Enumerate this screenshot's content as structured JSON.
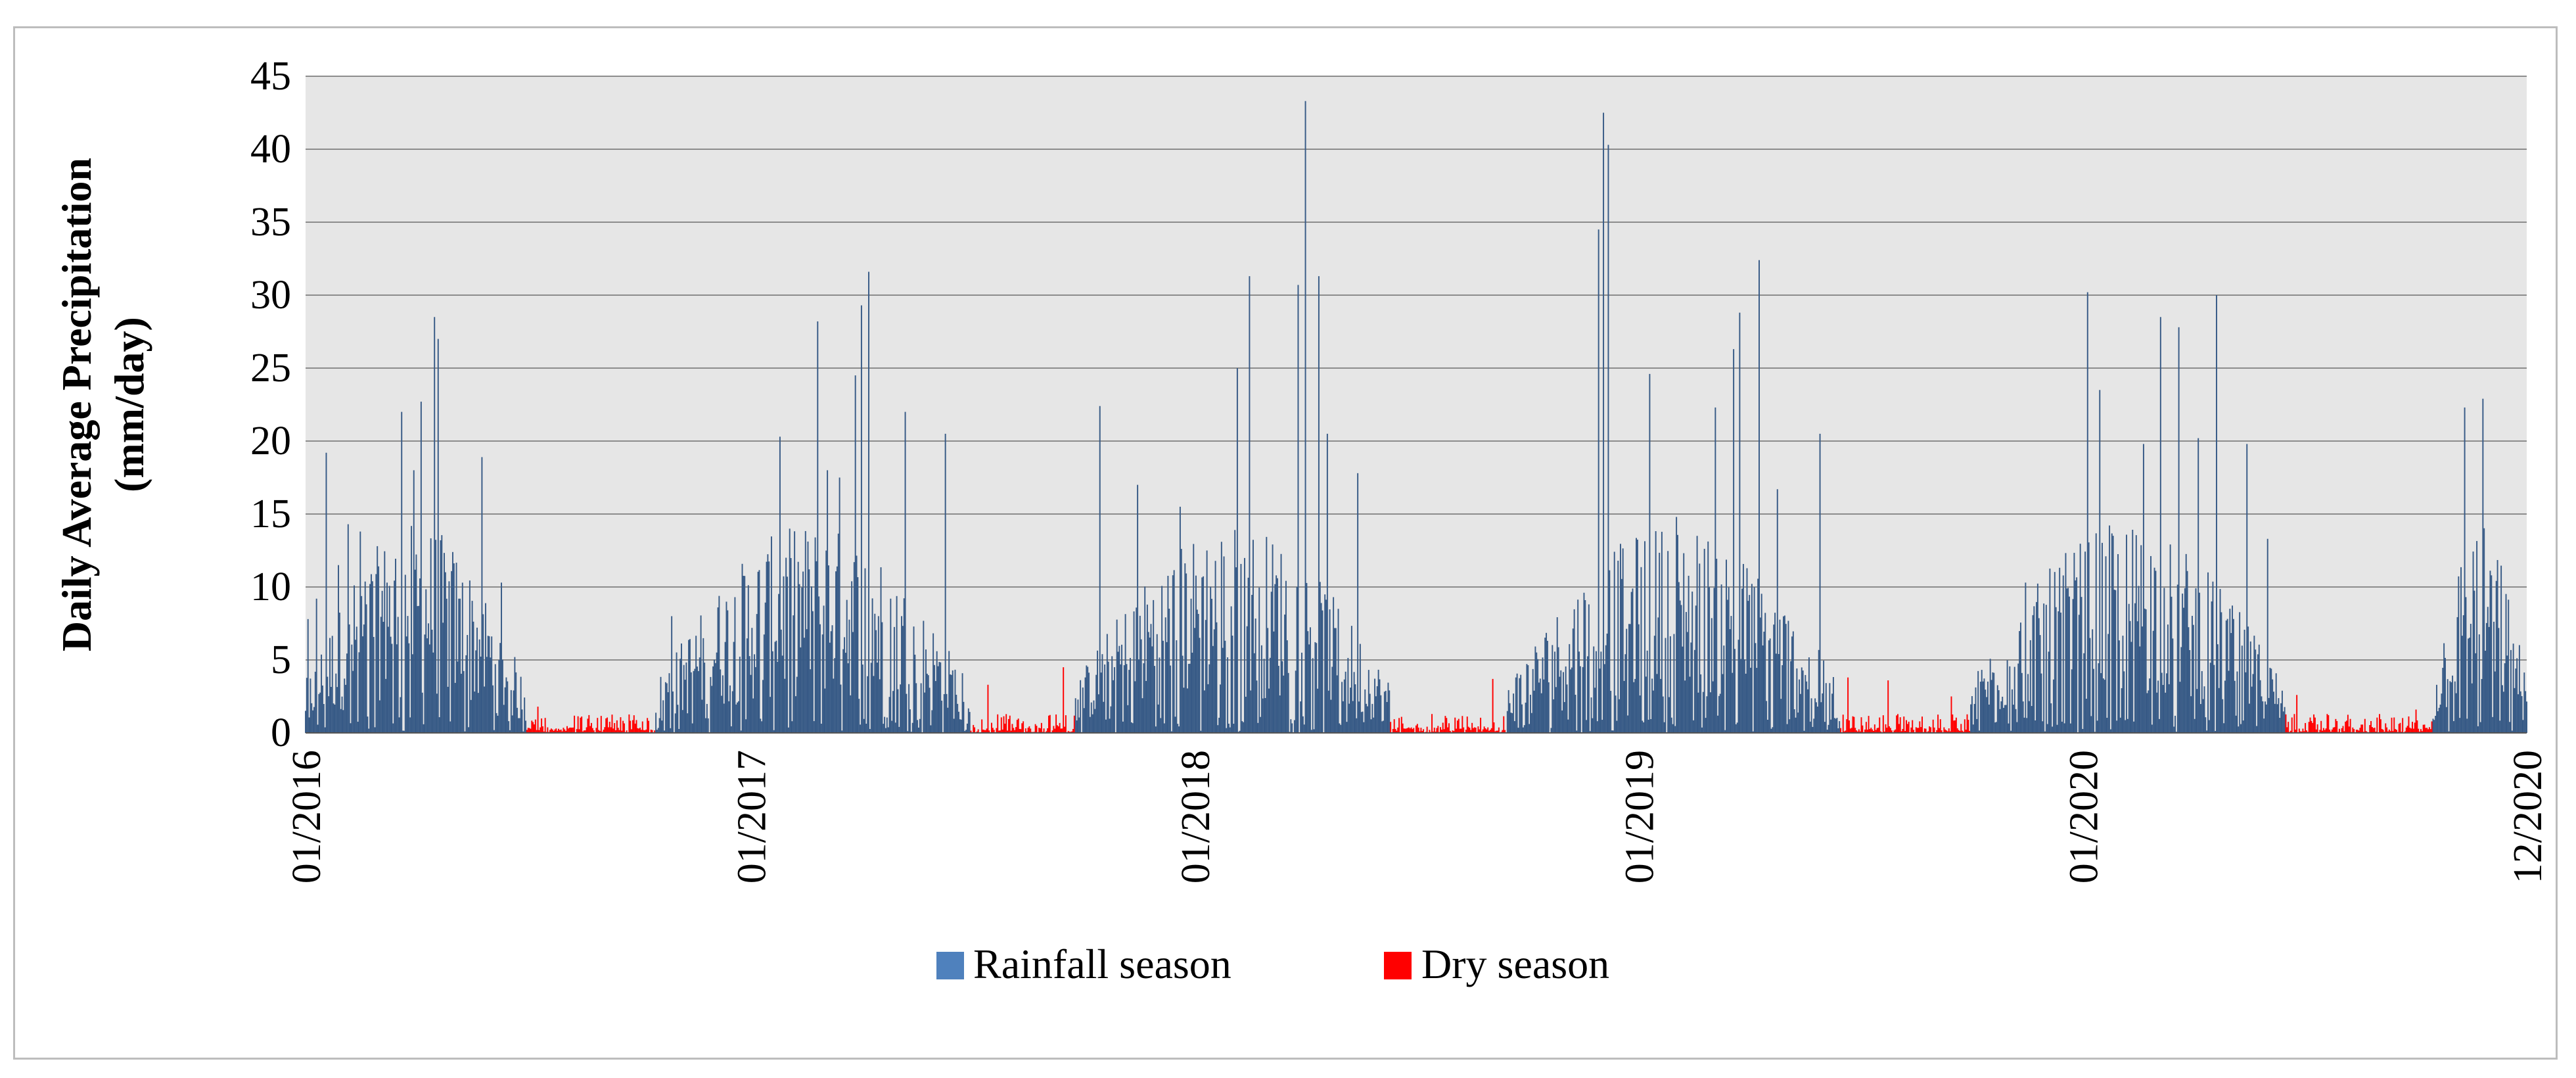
{
  "chart_data": {
    "type": "bar",
    "title": "",
    "ylabel_line1": "Daily Average Precipitation",
    "ylabel_line2": "(mm/day)",
    "xlabel": "",
    "ylim": [
      0,
      45
    ],
    "yticks": [
      0,
      5,
      10,
      15,
      20,
      25,
      30,
      35,
      40,
      45
    ],
    "xtick_labels": [
      "01/2016",
      "01/2017",
      "01/2018",
      "01/2019",
      "01/2020",
      "12/2020"
    ],
    "x_start": "01/2016",
    "x_end": "12/2020",
    "days": 1827,
    "grid": true,
    "legend_position": "bottom-center",
    "colors": {
      "rainfall": "#375a86",
      "dry": "#ff0000",
      "plot_bg": "#e6e6e6",
      "grid": "#8c8c8c",
      "legend_rain_swatch": "#4f81bd"
    },
    "series": [
      {
        "name": "Rainfall season",
        "color": "#375a86",
        "periods": [
          [
            "2016-01-01",
            "2016-06-30"
          ],
          [
            "2016-10-15",
            "2017-06-30"
          ],
          [
            "2017-09-25",
            "2018-06-10"
          ],
          [
            "2018-09-15",
            "2019-06-15"
          ],
          [
            "2019-10-01",
            "2020-06-15"
          ],
          [
            "2020-10-15",
            "2020-12-31"
          ]
        ],
        "peaks": [
          {
            "date": "2016-01-03",
            "value": 7.8
          },
          {
            "date": "2016-01-10",
            "value": 9.2
          },
          {
            "date": "2016-01-18",
            "value": 19.2
          },
          {
            "date": "2016-01-28",
            "value": 11.5
          },
          {
            "date": "2016-02-05",
            "value": 14.3
          },
          {
            "date": "2016-02-15",
            "value": 13.8
          },
          {
            "date": "2016-03-08",
            "value": 10.3
          },
          {
            "date": "2016-03-20",
            "value": 22
          },
          {
            "date": "2016-03-30",
            "value": 18
          },
          {
            "date": "2016-04-05",
            "value": 22.7
          },
          {
            "date": "2016-04-16",
            "value": 28.5
          },
          {
            "date": "2016-04-19",
            "value": 27
          },
          {
            "date": "2016-05-06",
            "value": 9.2
          },
          {
            "date": "2016-05-25",
            "value": 18.9
          },
          {
            "date": "2016-06-10",
            "value": 10.3
          },
          {
            "date": "2016-10-28",
            "value": 8
          },
          {
            "date": "2016-12-05",
            "value": 8.6
          },
          {
            "date": "2017-01-25",
            "value": 20.3
          },
          {
            "date": "2017-02-25",
            "value": 28.2
          },
          {
            "date": "2017-03-05",
            "value": 18
          },
          {
            "date": "2017-03-15",
            "value": 17.5
          },
          {
            "date": "2017-04-08",
            "value": 31.6
          },
          {
            "date": "2017-04-02",
            "value": 29.3
          },
          {
            "date": "2017-03-28",
            "value": 24.5
          },
          {
            "date": "2017-05-08",
            "value": 22
          },
          {
            "date": "2017-06-10",
            "value": 20.5
          },
          {
            "date": "2017-10-15",
            "value": 22.4
          },
          {
            "date": "2017-11-15",
            "value": 17
          },
          {
            "date": "2017-12-20",
            "value": 15.5
          },
          {
            "date": "2018-02-05",
            "value": 25
          },
          {
            "date": "2018-02-15",
            "value": 31.3
          },
          {
            "date": "2018-03-27",
            "value": 30.7
          },
          {
            "date": "2018-04-02",
            "value": 43.3
          },
          {
            "date": "2018-04-13",
            "value": 31.3
          },
          {
            "date": "2018-04-20",
            "value": 20.5
          },
          {
            "date": "2018-05-15",
            "value": 17.8
          },
          {
            "date": "2018-11-29",
            "value": 34.5
          },
          {
            "date": "2018-12-03",
            "value": 42.5
          },
          {
            "date": "2018-12-07",
            "value": 40.3
          },
          {
            "date": "2019-01-10",
            "value": 24.6
          },
          {
            "date": "2019-02-01",
            "value": 14.8
          },
          {
            "date": "2019-03-05",
            "value": 22.3
          },
          {
            "date": "2019-03-20",
            "value": 26.3
          },
          {
            "date": "2019-03-25",
            "value": 28.8
          },
          {
            "date": "2019-04-10",
            "value": 32.4
          },
          {
            "date": "2019-04-25",
            "value": 16.7
          },
          {
            "date": "2019-05-30",
            "value": 20.5
          },
          {
            "date": "2019-11-15",
            "value": 10.3
          },
          {
            "date": "2020-01-05",
            "value": 30.2
          },
          {
            "date": "2020-01-15",
            "value": 23.5
          },
          {
            "date": "2020-02-20",
            "value": 19.8
          },
          {
            "date": "2020-03-05",
            "value": 28.5
          },
          {
            "date": "2020-03-20",
            "value": 27.8
          },
          {
            "date": "2020-04-05",
            "value": 20.2
          },
          {
            "date": "2020-04-20",
            "value": 30
          },
          {
            "date": "2020-05-15",
            "value": 19.8
          },
          {
            "date": "2020-06-01",
            "value": 13.3
          },
          {
            "date": "2020-11-10",
            "value": 22.3
          },
          {
            "date": "2020-11-25",
            "value": 22.9
          },
          {
            "date": "2020-12-15",
            "value": 5.3
          }
        ]
      },
      {
        "name": "Dry season",
        "color": "#ff0000",
        "periods": [
          [
            "2016-07-01",
            "2016-10-14"
          ],
          [
            "2017-07-01",
            "2017-09-24"
          ],
          [
            "2018-06-11",
            "2018-09-14"
          ],
          [
            "2019-06-16",
            "2019-09-30"
          ],
          [
            "2020-06-16",
            "2020-10-14"
          ]
        ],
        "peaks": [
          {
            "date": "2016-07-10",
            "value": 1.8
          },
          {
            "date": "2017-07-15",
            "value": 3.3
          },
          {
            "date": "2017-09-15",
            "value": 4.5
          },
          {
            "date": "2018-09-03",
            "value": 3.7
          },
          {
            "date": "2019-06-22",
            "value": 3.8
          },
          {
            "date": "2019-07-25",
            "value": 3.6
          },
          {
            "date": "2019-09-15",
            "value": 2.5
          },
          {
            "date": "2020-06-25",
            "value": 2.6
          },
          {
            "date": "2020-10-01",
            "value": 1.6
          }
        ]
      }
    ]
  },
  "legend": {
    "items": [
      {
        "label": "Rainfall season"
      },
      {
        "label": "Dry season"
      }
    ]
  }
}
